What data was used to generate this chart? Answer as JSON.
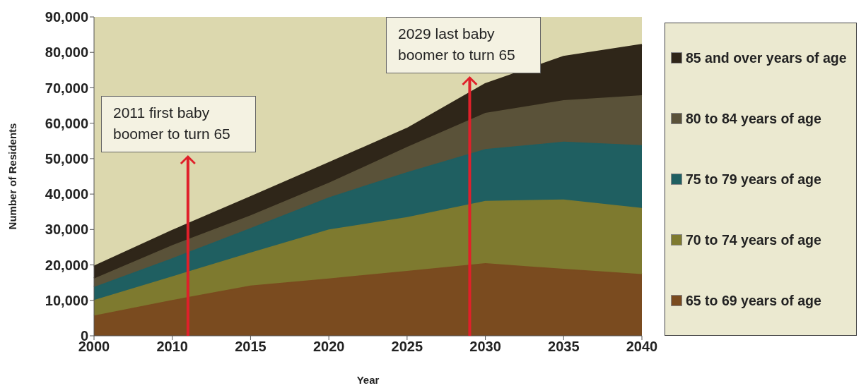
{
  "chart_data": {
    "type": "area",
    "stacked": true,
    "xlabel": "Year",
    "ylabel": "Number of Residents",
    "categories": [
      "2000",
      "2010",
      "2015",
      "2020",
      "2025",
      "2030",
      "2035",
      "2040"
    ],
    "series": [
      {
        "name": "65 to 69 years of age",
        "color": "#7a4b1f",
        "values": [
          5700,
          10100,
          14200,
          16200,
          18300,
          20500,
          18900,
          17400
        ]
      },
      {
        "name": "70 to 74 years of age",
        "color": "#7e7a2f",
        "values": [
          4400,
          6700,
          9300,
          13800,
          15200,
          17600,
          19600,
          18700
        ]
      },
      {
        "name": "75 to 79 years of age",
        "color": "#1f5f61",
        "values": [
          3700,
          5100,
          6900,
          9100,
          12700,
          14600,
          16300,
          17700
        ]
      },
      {
        "name": "80 to 84 years of age",
        "color": "#5a5239",
        "values": [
          2400,
          3700,
          3600,
          4100,
          7100,
          10200,
          11700,
          14100
        ]
      },
      {
        "name": "85 and over years of age",
        "color": "#2f2619",
        "values": [
          3300,
          4000,
          5100,
          5500,
          5100,
          8100,
          12200,
          14200
        ]
      }
    ],
    "ylim": [
      0,
      90000
    ],
    "yticks": [
      {
        "value": 0,
        "label": "0"
      },
      {
        "value": 10000,
        "label": "10,000"
      },
      {
        "value": 20000,
        "label": "20,000"
      },
      {
        "value": 30000,
        "label": "30,000"
      },
      {
        "value": 40000,
        "label": "40,000"
      },
      {
        "value": 50000,
        "label": "50,000"
      },
      {
        "value": 60000,
        "label": "60,000"
      },
      {
        "value": 70000,
        "label": "70,000"
      },
      {
        "value": 80000,
        "label": "80,000"
      },
      {
        "value": 90000,
        "label": "90,000"
      }
    ],
    "grid": false,
    "legend": "right",
    "annotations": [
      "2011 first baby boomer to turn 65",
      "2029 last baby boomer to turn 65"
    ]
  }
}
